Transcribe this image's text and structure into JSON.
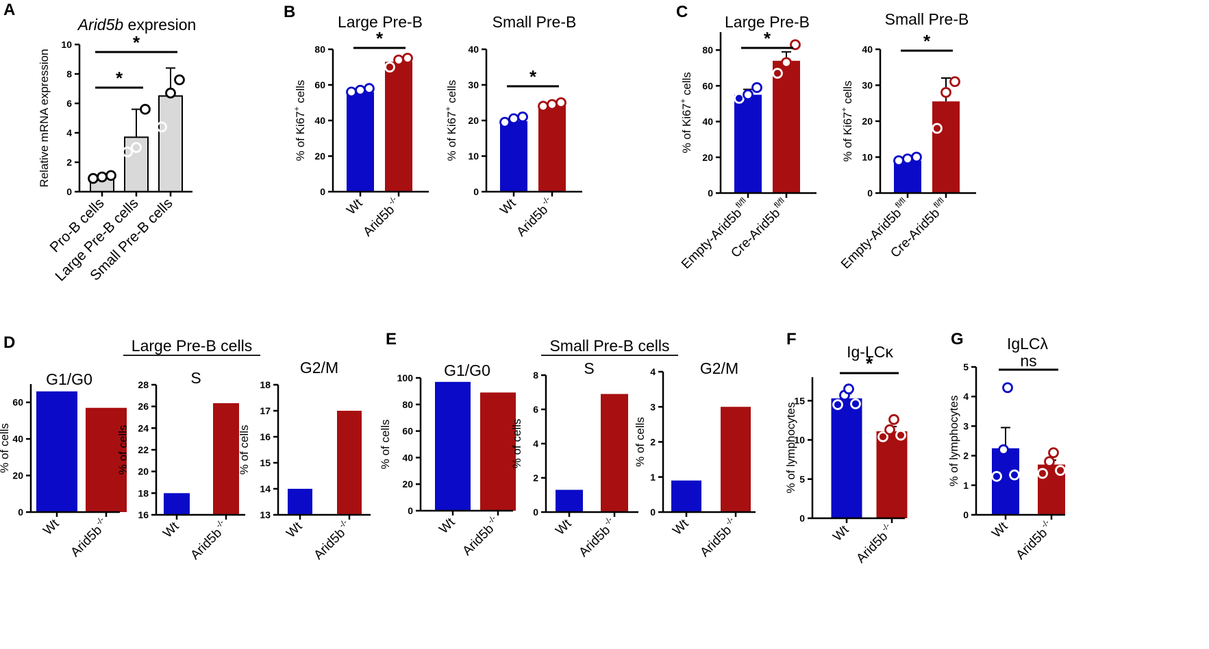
{
  "colors": {
    "wt": "#0a0ac8",
    "ko": "#a80f10",
    "grey": "#d9d9d9",
    "black": "#000000"
  },
  "chart_data": [
    {
      "id": "A",
      "panel_label": "A",
      "type": "bar",
      "title_italic": "Arid5b",
      "title_rest": " expresion",
      "ylabel": "Relative mRNA expression",
      "ylim": [
        0,
        10
      ],
      "yticks": [
        "0",
        "2",
        "4",
        "6",
        "8",
        "10"
      ],
      "categories": [
        "Pro-B cells",
        "Large Pre-B cells",
        "Small Pre-B cells"
      ],
      "values": [
        1.0,
        3.7,
        6.5
      ],
      "errors": [
        0,
        1.9,
        1.9
      ],
      "points": [
        [
          0.9,
          1.0,
          1.1
        ],
        [
          2.7,
          3.0,
          5.6
        ],
        [
          4.4,
          6.7,
          7.6
        ]
      ],
      "sig": [
        {
          "from": 0,
          "to": 1,
          "label": "*"
        },
        {
          "from": 0,
          "to": 2,
          "label": "*"
        }
      ]
    },
    {
      "id": "B1",
      "panel_label": "B",
      "type": "bar",
      "title": "Large Pre-B",
      "ylabel_main": "% of Ki67",
      "ylabel_sup": "+",
      "ylabel_tail": " cells",
      "ylim": [
        0,
        80
      ],
      "yticks": [
        "0",
        "20",
        "40",
        "60",
        "80"
      ],
      "categories": [
        "Wt",
        "Arid5b"
      ],
      "category_sup": [
        "",
        "-/-"
      ],
      "values": [
        56,
        73
      ],
      "errors": [
        0,
        2
      ],
      "points": [
        [
          56,
          57,
          58
        ],
        [
          70,
          74,
          75
        ]
      ],
      "sig": [
        {
          "from": 0,
          "to": 1,
          "label": "*"
        }
      ]
    },
    {
      "id": "B2",
      "panel_label": "",
      "type": "bar",
      "title": "Small Pre-B",
      "ylabel_main": "% of Ki67",
      "ylabel_sup": "+",
      "ylabel_tail": " cells",
      "ylim": [
        0,
        40
      ],
      "yticks": [
        "0",
        "10",
        "20",
        "30",
        "40"
      ],
      "categories": [
        "Wt",
        "Arid5b"
      ],
      "category_sup": [
        "",
        "-/-"
      ],
      "values": [
        19.8,
        24.5
      ],
      "errors": [
        0.5,
        0
      ],
      "points": [
        [
          19.5,
          20.5,
          21
        ],
        [
          24,
          24.5,
          25
        ]
      ],
      "sig": [
        {
          "from": 0,
          "to": 1,
          "label": "*"
        }
      ]
    },
    {
      "id": "C1",
      "panel_label": "C",
      "type": "bar",
      "title": "Large Pre-B",
      "ylabel_main": "% of Ki67",
      "ylabel_sup": "+",
      "ylabel_tail": " cells",
      "ylim": [
        0,
        90
      ],
      "yticks": [
        "0",
        "20",
        "40",
        "60",
        "80"
      ],
      "categories": [
        "Empty-Arid5b",
        "Cre-Arid5b"
      ],
      "category_sup": [
        "fl/fl",
        "fl/fl"
      ],
      "values": [
        55,
        74
      ],
      "errors": [
        3,
        5
      ],
      "points": [
        [
          53,
          55,
          59
        ],
        [
          67,
          73,
          83
        ]
      ],
      "sig": [
        {
          "from": 0,
          "to": 1,
          "label": "*"
        }
      ]
    },
    {
      "id": "C2",
      "panel_label": "",
      "type": "bar",
      "title": "Small Pre-B",
      "ylabel_main": "% of Ki67",
      "ylabel_sup": "+",
      "ylabel_tail": " cells",
      "ylim": [
        0,
        40
      ],
      "yticks": [
        "0",
        "10",
        "20",
        "30",
        "40"
      ],
      "categories": [
        "Empty-Arid5b",
        "Cre-Arid5b"
      ],
      "category_sup": [
        "fl/fl",
        "fl/fl"
      ],
      "values": [
        9.0,
        25.5
      ],
      "errors": [
        0,
        6.5
      ],
      "points": [
        [
          9,
          9.5,
          10
        ],
        [
          18,
          28,
          31
        ]
      ],
      "sig": [
        {
          "from": 0,
          "to": 1,
          "label": "*"
        }
      ]
    },
    {
      "id": "D1",
      "panel_label": "D",
      "group_title": "Large Pre-B cells",
      "type": "bar",
      "title": "G1/G0",
      "ylabel": "% of cells",
      "ylim": [
        0,
        70
      ],
      "yticks": [
        "0",
        "20",
        "40",
        "60"
      ],
      "categories": [
        "Wt",
        "Arid5b"
      ],
      "category_sup": [
        "",
        "-/-"
      ],
      "values": [
        66,
        57
      ]
    },
    {
      "id": "D2",
      "panel_label": "",
      "type": "bar",
      "title": "S",
      "ylabel": "% of cells",
      "ylim": [
        16,
        28
      ],
      "yticks": [
        "16",
        "18",
        "20",
        "22",
        "24",
        "26",
        "28"
      ],
      "categories": [
        "Wt",
        "Arid5b"
      ],
      "category_sup": [
        "",
        "-/-"
      ],
      "values": [
        18,
        26.3
      ]
    },
    {
      "id": "D3",
      "panel_label": "",
      "type": "bar",
      "title": "G2/M",
      "ylabel": "% of cells",
      "ylim": [
        13,
        18
      ],
      "yticks": [
        "13",
        "14",
        "15",
        "16",
        "17",
        "18"
      ],
      "categories": [
        "Wt",
        "Arid5b"
      ],
      "category_sup": [
        "",
        "-/-"
      ],
      "values": [
        14,
        17
      ]
    },
    {
      "id": "E1",
      "panel_label": "E",
      "group_title": "Small Pre-B cells",
      "type": "bar",
      "title": "G1/G0",
      "ylabel": "% of cells",
      "ylim": [
        0,
        100
      ],
      "yticks": [
        "0",
        "20",
        "40",
        "60",
        "80",
        "100"
      ],
      "categories": [
        "Wt",
        "Arid5b"
      ],
      "category_sup": [
        "",
        "-/-"
      ],
      "values": [
        97,
        89
      ]
    },
    {
      "id": "E2",
      "panel_label": "",
      "type": "bar",
      "title": "S",
      "ylabel": "% of cells",
      "ylim": [
        0,
        8
      ],
      "yticks": [
        "0",
        "2",
        "4",
        "6",
        "8"
      ],
      "categories": [
        "Wt",
        "Arid5b"
      ],
      "category_sup": [
        "",
        "-/-"
      ],
      "values": [
        1.3,
        6.9
      ]
    },
    {
      "id": "E3",
      "panel_label": "",
      "type": "bar",
      "title": "G2/M",
      "ylabel": "% of cells",
      "ylim": [
        0,
        4
      ],
      "yticks": [
        "0",
        "1",
        "2",
        "3",
        "4"
      ],
      "categories": [
        "Wt",
        "Arid5b"
      ],
      "category_sup": [
        "",
        "-/-"
      ],
      "values": [
        0.9,
        3.0
      ]
    },
    {
      "id": "F",
      "panel_label": "F",
      "type": "bar",
      "title": "Ig-LCκ",
      "ylabel": "% of lymphocytes",
      "ylim": [
        0,
        18
      ],
      "yticks": [
        "0",
        "5",
        "10",
        "15"
      ],
      "categories": [
        "Wt",
        "Arid5b"
      ],
      "category_sup": [
        "",
        "-/-"
      ],
      "values": [
        15.3,
        11.1
      ],
      "errors": [
        0.6,
        0.6
      ],
      "points": [
        [
          14.5,
          14.6,
          15.7,
          16.5
        ],
        [
          10.4,
          10.6,
          11.3,
          12.6
        ]
      ],
      "sig": [
        {
          "from": 0,
          "to": 1,
          "label": "*"
        }
      ]
    },
    {
      "id": "G",
      "panel_label": "G",
      "type": "bar",
      "title": "IgLCλ",
      "ylabel": "% of lymphocytes",
      "ylim": [
        0,
        5
      ],
      "yticks": [
        "0",
        "1",
        "2",
        "3",
        "4",
        "5"
      ],
      "categories": [
        "Wt",
        "Arid5b"
      ],
      "category_sup": [
        "",
        "-/-"
      ],
      "values": [
        2.25,
        1.7
      ],
      "errors": [
        0.7,
        0.15
      ],
      "points": [
        [
          1.3,
          1.35,
          2.2,
          4.3
        ],
        [
          1.4,
          1.5,
          1.8,
          2.1
        ]
      ],
      "sig": [
        {
          "from": 0,
          "to": 1,
          "label": "ns"
        }
      ]
    }
  ]
}
